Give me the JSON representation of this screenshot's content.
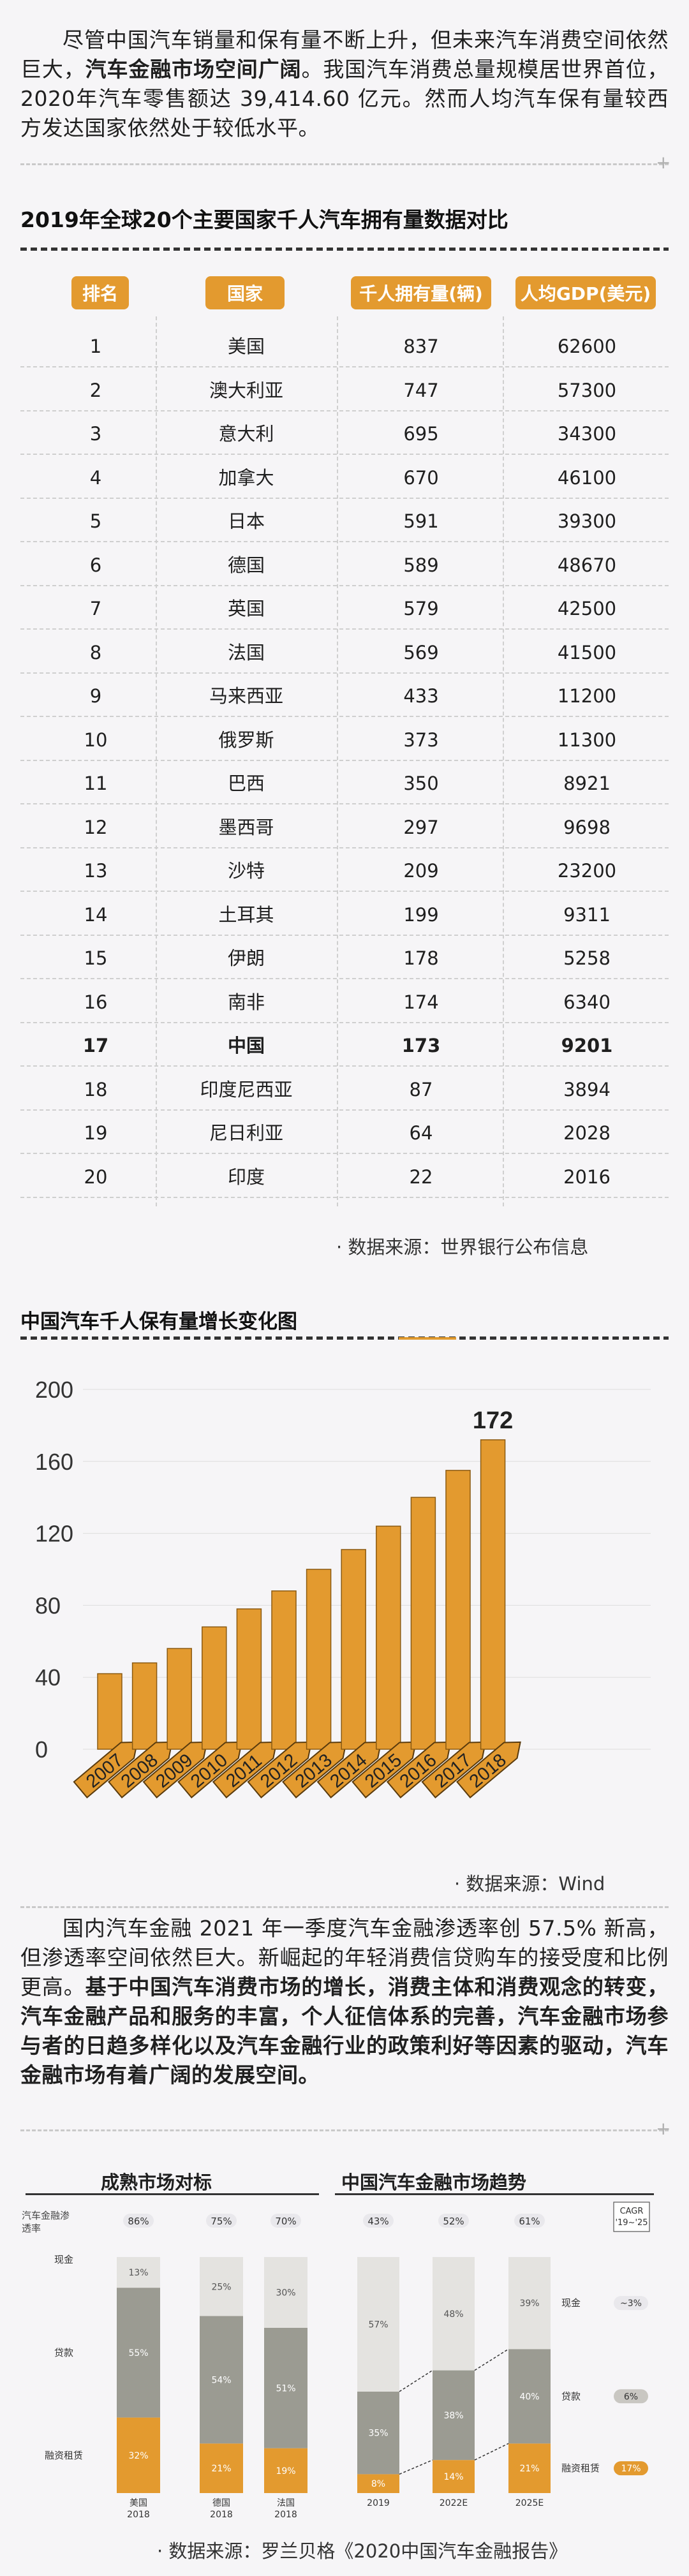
{
  "intro": {
    "line1_pre": "尽管中国汽车销量和保有量不断上升，但未来汽车消费空间依然巨大，",
    "line1_bold": "汽车金融市场空间广阔",
    "line1_post": "。我国汽车消费总量规模居世界首位，2020年汽车零售额达 39,414.60 亿元。然而人均汽车保有量较西方发达国家依然处于较低水平。"
  },
  "table": {
    "title": "2019年全球20个主要国家千人汽车拥有量数据对比",
    "headers": [
      "排名",
      "国家",
      "千人拥有量(辆)",
      "人均GDP(美元)"
    ],
    "rows": [
      [
        "1",
        "美国",
        "837",
        "62600"
      ],
      [
        "2",
        "澳大利亚",
        "747",
        "57300"
      ],
      [
        "3",
        "意大利",
        "695",
        "34300"
      ],
      [
        "4",
        "加拿大",
        "670",
        "46100"
      ],
      [
        "5",
        "日本",
        "591",
        "39300"
      ],
      [
        "6",
        "德国",
        "589",
        "48670"
      ],
      [
        "7",
        "英国",
        "579",
        "42500"
      ],
      [
        "8",
        "法国",
        "569",
        "41500"
      ],
      [
        "9",
        "马来西亚",
        "433",
        "11200"
      ],
      [
        "10",
        "俄罗斯",
        "373",
        "11300"
      ],
      [
        "11",
        "巴西",
        "350",
        "8921"
      ],
      [
        "12",
        "墨西哥",
        "297",
        "9698"
      ],
      [
        "13",
        "沙特",
        "209",
        "23200"
      ],
      [
        "14",
        "土耳其",
        "199",
        "9311"
      ],
      [
        "15",
        "伊朗",
        "178",
        "5258"
      ],
      [
        "16",
        "南非",
        "174",
        "6340"
      ],
      [
        "17",
        "中国",
        "173",
        "9201"
      ],
      [
        "18",
        "印度尼西亚",
        "87",
        "3894"
      ],
      [
        "19",
        "尼日利亚",
        "64",
        "2028"
      ],
      [
        "20",
        "印度",
        "22",
        "2016"
      ]
    ],
    "highlight_rank": "17",
    "source": "· 数据来源：世界银行公布信息"
  },
  "chart_data": [
    {
      "type": "bar",
      "title": "中国汽车千人保有量增长变化图",
      "categories": [
        "2007",
        "2008",
        "2009",
        "2010",
        "2011",
        "2012",
        "2013",
        "2014",
        "2015",
        "2016",
        "2017",
        "2018"
      ],
      "values": [
        42,
        48,
        56,
        68,
        78,
        88,
        100,
        111,
        124,
        140,
        155,
        172
      ],
      "ylim": [
        0,
        200
      ],
      "yticks": [
        0,
        40,
        80,
        120,
        160,
        200
      ],
      "last_label": "172",
      "bar_color": "#e39a2f",
      "source": "· 数据来源：Wind"
    },
    {
      "type": "bar",
      "subtype": "stacked",
      "title": "成熟市场对标",
      "ylabel": "汽车金融渗透率",
      "categories": [
        "美国\n2018",
        "德国\n2018",
        "法国\n2018"
      ],
      "top_labels": [
        "86%",
        "75%",
        "70%"
      ],
      "series": [
        {
          "name": "融资租赁",
          "values": [
            32,
            21,
            19
          ]
        },
        {
          "name": "贷款",
          "values": [
            55,
            54,
            51
          ]
        },
        {
          "name": "现金",
          "values": [
            13,
            25,
            30
          ]
        }
      ]
    },
    {
      "type": "bar",
      "subtype": "stacked",
      "title": "中国汽车金融市场趋势",
      "categories": [
        "2019",
        "2022E",
        "2025E"
      ],
      "top_labels": [
        "43%",
        "52%",
        "61%"
      ],
      "series": [
        {
          "name": "融资租赁",
          "values": [
            8,
            14,
            21
          ]
        },
        {
          "name": "贷款",
          "values": [
            35,
            38,
            40
          ]
        },
        {
          "name": "现金",
          "values": [
            57,
            48,
            39
          ]
        }
      ],
      "cagr_header": "CAGR\n'19~'25",
      "cagr": {
        "现金": "~3%",
        "贷款": "6%",
        "融资租赁": "17%"
      }
    }
  ],
  "para2": {
    "pre": "国内汽车金融 2021 年一季度汽车金融渗透率创 57.5% 新高，但渗透率空间依然巨大。新崛起的年轻消费信贷购车的接受度和比例更高。",
    "bold": "基于中国汽车消费市场的增长，消费主体和消费观念的转变，汽车金融产品和服务的丰富，个人征信体系的完善，汽车金融市场参与者的日趋多样化以及汽车金融行业的政策利好等因素的驱动，汽车金融市场有着广阔的发展空间。"
  },
  "final_source": "· 数据来源：罗兰贝格《2020中国汽车金融报告》",
  "colors": {
    "orange": "#e39a2f",
    "gray": "#9b9b92",
    "light": "#e4e3e0"
  }
}
